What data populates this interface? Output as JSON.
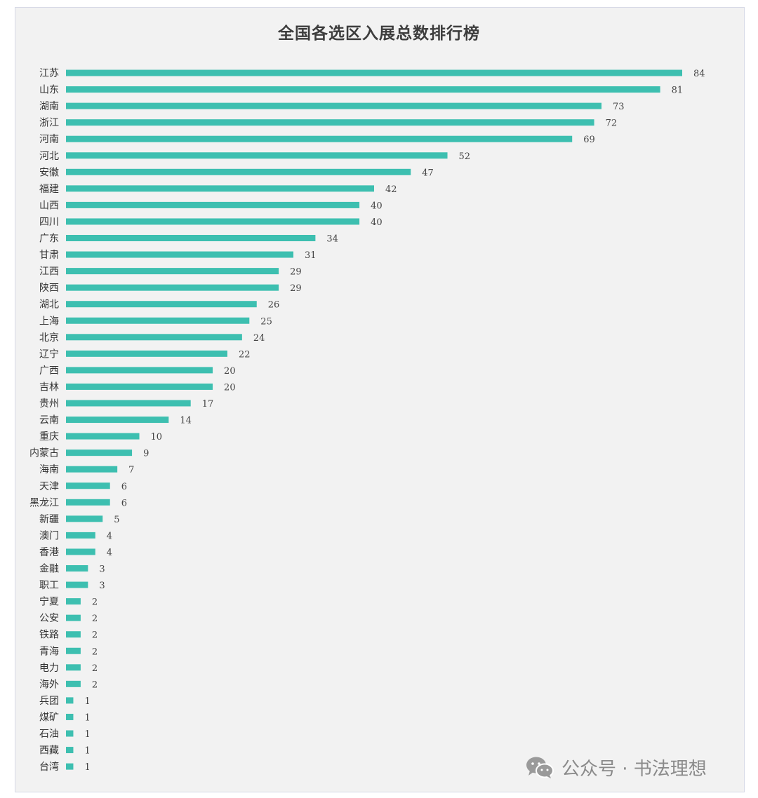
{
  "colors": {
    "bar": "#3dbfb0",
    "background": "#f2f2f2",
    "border": "#d6d9e6"
  },
  "chart_data": {
    "type": "bar",
    "orientation": "horizontal",
    "title": "全国各选区入展总数排行榜",
    "xlabel": "",
    "ylabel": "",
    "xlim": [
      0,
      84
    ],
    "grid": false,
    "categories": [
      "江苏",
      "山东",
      "湖南",
      "浙江",
      "河南",
      "河北",
      "安徽",
      "福建",
      "山西",
      "四川",
      "广东",
      "甘肃",
      "江西",
      "陕西",
      "湖北",
      "上海",
      "北京",
      "辽宁",
      "广西",
      "吉林",
      "贵州",
      "云南",
      "重庆",
      "内蒙古",
      "海南",
      "天津",
      "黑龙江",
      "新疆",
      "澳门",
      "香港",
      "金融",
      "职工",
      "宁夏",
      "公安",
      "铁路",
      "青海",
      "电力",
      "海外",
      "兵团",
      "煤矿",
      "石油",
      "西藏",
      "台湾"
    ],
    "values": [
      84,
      81,
      73,
      72,
      69,
      52,
      47,
      42,
      40,
      40,
      34,
      31,
      29,
      29,
      26,
      25,
      24,
      22,
      20,
      20,
      17,
      14,
      10,
      9,
      7,
      6,
      6,
      5,
      4,
      4,
      3,
      3,
      2,
      2,
      2,
      2,
      2,
      2,
      1,
      1,
      1,
      1,
      1
    ]
  },
  "watermark": {
    "icon": "wechat-icon",
    "text": "公众号 · 书法理想"
  }
}
